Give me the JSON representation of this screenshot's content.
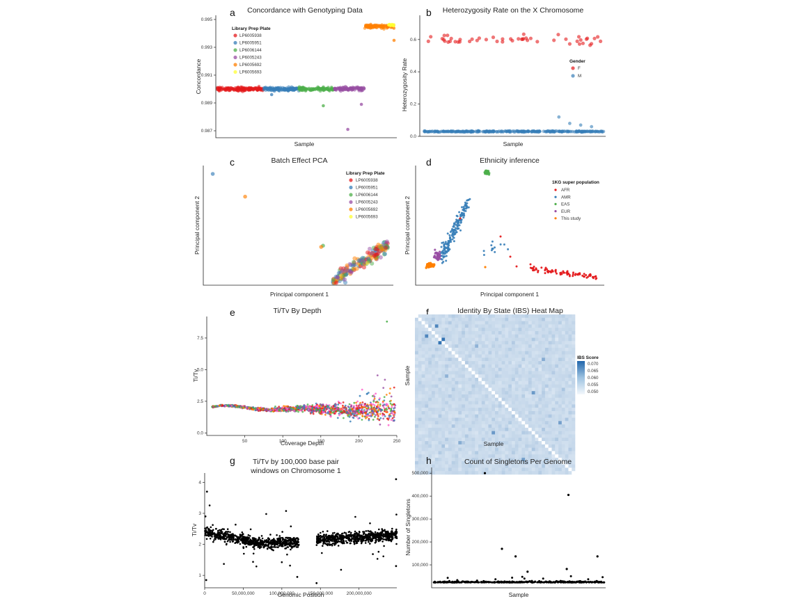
{
  "figure": {
    "panel_letters": [
      "a",
      "b",
      "c",
      "d",
      "e",
      "f",
      "g",
      "h"
    ]
  },
  "chart_data": [
    {
      "panel": "a",
      "type": "scatter",
      "title": "Concordance with Genotyping Data",
      "xlabel": "Sample",
      "ylabel": "Concordance",
      "ylim": [
        0.9865,
        0.9953
      ],
      "yticks": [
        "0.987",
        "0.989",
        "0.991",
        "0.993",
        "0.995"
      ],
      "legend_title": "Library Prep Plate",
      "legend_position": "top-left",
      "series": [
        {
          "name": "LP6005938",
          "color": "#e41a1c",
          "x_range": [
            0,
            34
          ],
          "center": 0.99,
          "spread": 0.00012,
          "outliers": []
        },
        {
          "name": "LP6005951",
          "color": "#377eb8",
          "x_range": [
            34,
            60
          ],
          "center": 0.99,
          "spread": 0.00012,
          "outliers": [
            {
              "x": 40,
              "y": 0.9896
            }
          ]
        },
        {
          "name": "LP6006144",
          "color": "#4daf4a",
          "x_range": [
            60,
            86
          ],
          "center": 0.99,
          "spread": 0.00012,
          "outliers": [
            {
              "x": 78,
              "y": 0.9888
            }
          ]
        },
        {
          "name": "LP6005243",
          "color": "#984ea3",
          "x_range": [
            86,
            108
          ],
          "center": 0.99,
          "spread": 0.00012,
          "outliers": [
            {
              "x": 96,
              "y": 0.9871
            },
            {
              "x": 106,
              "y": 0.9889
            }
          ]
        },
        {
          "name": "LP6005692",
          "color": "#ff7f00",
          "x_range": [
            108,
            130
          ],
          "center": 0.9945,
          "spread": 0.00012,
          "outliers": [
            {
              "x": 130,
              "y": 0.9935
            }
          ]
        },
        {
          "name": "LP6005693",
          "color": "#ffff33",
          "x_range": [
            126,
            130
          ],
          "center": 0.9946,
          "spread": 5e-05,
          "outliers": []
        }
      ]
    },
    {
      "panel": "b",
      "type": "scatter",
      "title": "Heterozygosity Rate on the X Chromosome",
      "xlabel": "Sample",
      "ylabel": "Heterozygosity Rate",
      "ylim": [
        0,
        0.75
      ],
      "yticks": [
        "0.0",
        "0.2",
        "0.4",
        "0.6"
      ],
      "legend_title": "Gender",
      "legend_position": "right",
      "series": [
        {
          "name": "F",
          "color": "#e41a1c",
          "center": 0.6,
          "spread": 0.025,
          "count": 50
        },
        {
          "name": "M",
          "color": "#377eb8",
          "center": 0.03,
          "spread": 0.003,
          "count": 320,
          "outliers": [
            0.12,
            0.08,
            0.07,
            0.06
          ]
        }
      ]
    },
    {
      "panel": "c",
      "type": "scatter",
      "title": "Batch Effect PCA",
      "xlabel": "Principal component 1",
      "ylabel": "Principal component 2",
      "legend_title": "Library Prep Plate",
      "legend_position": "top-right",
      "series_names": [
        "LP6005938",
        "LP6005951",
        "LP6006144",
        "LP6005243",
        "LP6005692",
        "LP6005693"
      ],
      "series_colors": [
        "#e41a1c",
        "#377eb8",
        "#4daf4a",
        "#984ea3",
        "#ff7f00",
        "#ffff33"
      ],
      "outliers": [
        {
          "x": 0.05,
          "y": 0.93,
          "series": 1
        },
        {
          "x": 0.22,
          "y": 0.74,
          "series": 4
        },
        {
          "x": 0.63,
          "y": 0.33,
          "series": 2
        },
        {
          "x": 0.62,
          "y": 0.32,
          "series": 4
        }
      ],
      "cluster": {
        "x": [
          0.68,
          0.97
        ],
        "y": [
          0.04,
          0.38
        ]
      }
    },
    {
      "panel": "d",
      "type": "scatter",
      "title": "Ethnicity inference",
      "xlabel": "Principal component 1",
      "ylabel": "Principal component 2",
      "legend_title": "1KG super population",
      "legend_position": "top-right",
      "series": [
        {
          "name": "AFR",
          "color": "#e41a1c"
        },
        {
          "name": "AMR",
          "color": "#377eb8"
        },
        {
          "name": "EAS",
          "color": "#4daf4a"
        },
        {
          "name": "EUR",
          "color": "#984ea3"
        },
        {
          "name": "This study",
          "color": "#ff7f00"
        }
      ]
    },
    {
      "panel": "e",
      "type": "scatter",
      "title": "Ti/Tv By Depth",
      "xlabel": "Coverage Depth",
      "ylabel": "Ti/Tv",
      "xlim": [
        0,
        250
      ],
      "ylim": [
        -0.2,
        9.2
      ],
      "xticks": [
        "50",
        "100",
        "150",
        "200",
        "250"
      ],
      "yticks": [
        "0.0",
        "2.5",
        "5.0",
        "7.5"
      ],
      "colors": [
        "#e41a1c",
        "#377eb8",
        "#4daf4a",
        "#984ea3",
        "#ff7f00",
        "#ff5cc8"
      ],
      "max_point": {
        "x": 237,
        "y": 8.8
      }
    },
    {
      "panel": "f",
      "type": "heatmap",
      "title": "Identity By State (IBS) Heat Map",
      "xlabel": "Sample",
      "ylabel": "Sample",
      "legend_title": "IBS Score",
      "legend_position": "right",
      "scale_ticks": [
        "0.070",
        "0.065",
        "0.060",
        "0.055",
        "0.050"
      ],
      "scale_range": [
        0.049,
        0.072
      ],
      "grid_size": 48,
      "hot_cells": [
        [
          6,
          3,
          0.067
        ],
        [
          8,
          7,
          0.07
        ],
        [
          35,
          23,
          0.064
        ],
        [
          32,
          43,
          0.063
        ],
        [
          13,
          38,
          0.061
        ],
        [
          18,
          9,
          0.06
        ]
      ]
    },
    {
      "panel": "g",
      "type": "scatter",
      "title": [
        "Ti/Tv by 100,000 base pair",
        "windows on Chromosome 1"
      ],
      "xlabel": "Genomic Position",
      "ylabel": "Ti/Tv",
      "xlim": [
        0,
        249000000
      ],
      "ylim": [
        0.6,
        4.3
      ],
      "xticks": [
        "0",
        "50,000,000",
        "100,000,000",
        "150,000,000",
        "200,000,000"
      ],
      "yticks": [
        "1",
        "2",
        "3",
        "4"
      ],
      "gap": [
        122000000,
        145000000
      ]
    },
    {
      "panel": "h",
      "type": "scatter",
      "title": "Count of Singletons Per Genome",
      "xlabel": "Sample",
      "ylabel": "Number of Singletons",
      "ylim": [
        0,
        525000
      ],
      "yticks": [
        "100,000",
        "200,000",
        "300,000",
        "400,000",
        "500,000"
      ],
      "baseline": 25000,
      "outliers": [
        {
          "x": 0.3,
          "y": 500000
        },
        {
          "x": 0.4,
          "y": 170000
        },
        {
          "x": 0.48,
          "y": 137000
        },
        {
          "x": 0.79,
          "y": 405000
        },
        {
          "x": 0.96,
          "y": 137000
        },
        {
          "x": 0.78,
          "y": 82000
        },
        {
          "x": 0.55,
          "y": 70000
        }
      ]
    }
  ]
}
